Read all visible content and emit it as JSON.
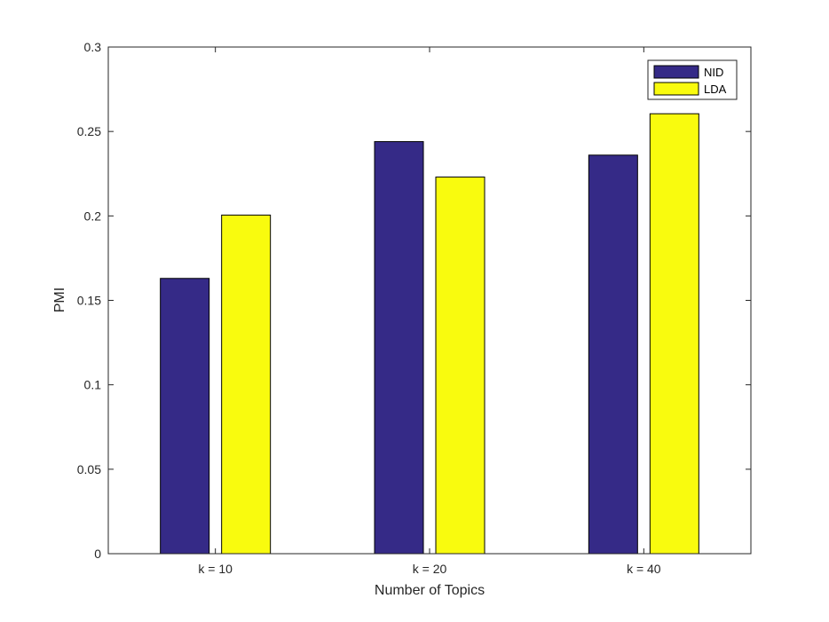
{
  "chart_data": {
    "type": "bar",
    "title": "",
    "xlabel": "Number of Topics",
    "ylabel": "PMI",
    "categories": [
      "k = 10",
      "k = 20",
      "k = 40"
    ],
    "series": [
      {
        "name": "NID",
        "values": [
          0.163,
          0.244,
          0.236
        ],
        "color": "#352a87"
      },
      {
        "name": "LDA",
        "values": [
          0.2005,
          0.223,
          0.2605
        ],
        "color": "#f9fb0e"
      }
    ],
    "ylim": [
      0,
      0.3
    ],
    "yticks": [
      0,
      0.05,
      0.1,
      0.15,
      0.2,
      0.25,
      0.3
    ],
    "ytick_labels": [
      "0",
      "0.05",
      "0.1",
      "0.15",
      "0.2",
      "0.25",
      "0.3"
    ],
    "grid": false,
    "legend_position": "top-right"
  }
}
